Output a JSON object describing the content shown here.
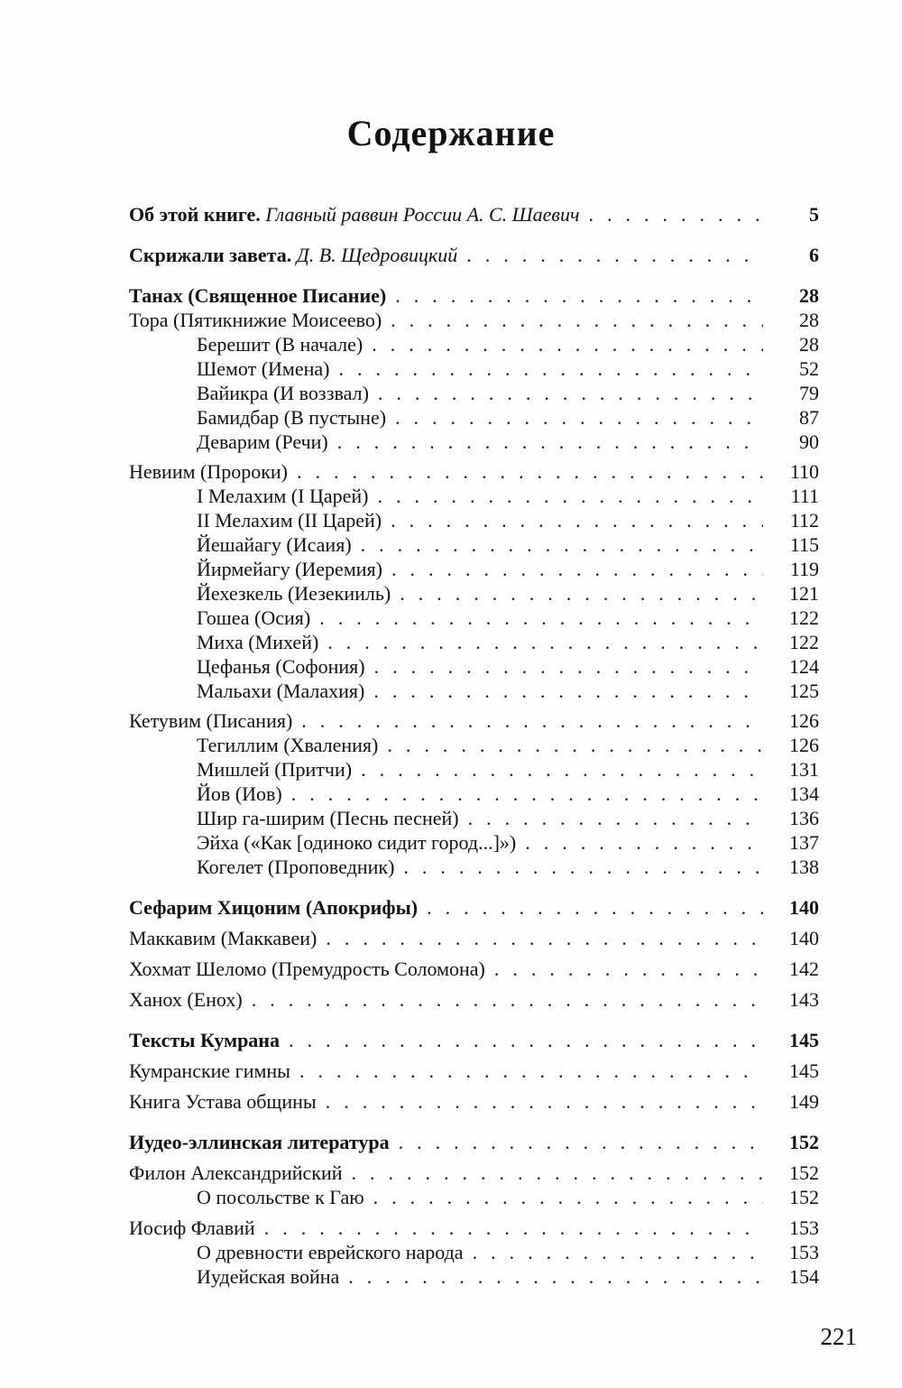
{
  "toc": {
    "title": "Содержание",
    "sections": [
      {
        "rows": [
          {
            "parts": [
              {
                "text": "Об этой книге.",
                "style": "bold"
              },
              {
                "text": "Главный раввин России А. С. Шаевич",
                "style": "italic"
              }
            ],
            "page": "5",
            "pageBold": true,
            "indent": 0
          }
        ]
      },
      {
        "rows": [
          {
            "parts": [
              {
                "text": "Скрижали завета.",
                "style": "bold"
              },
              {
                "text": "Д. В. Щедровицкий",
                "style": "italic"
              }
            ],
            "page": "6",
            "pageBold": true,
            "indent": 0
          }
        ]
      },
      {
        "rows": [
          {
            "label": "Танах (Священное Писание)",
            "bold": true,
            "page": "28",
            "indent": 0
          },
          {
            "label": "Тора (Пятикнижие Моисеево)",
            "page": "28",
            "indent": 0
          },
          {
            "label": "Берешит (В начале)",
            "page": "28",
            "indent": 1
          },
          {
            "label": "Шемот (Имена)",
            "page": "52",
            "indent": 1
          },
          {
            "label": "Вайикра (И воззвал)",
            "page": "79",
            "indent": 1
          },
          {
            "label": "Бамидбар (В пустыне)",
            "page": "87",
            "indent": 1
          },
          {
            "label": "Деварим (Речи)",
            "page": "90",
            "indent": 1
          },
          {
            "label": "Невиим (Пророки)",
            "page": "110",
            "indent": 0
          },
          {
            "label": "I Мелахим (I Царей)",
            "page": "111",
            "indent": 1
          },
          {
            "label": "II Мелахим (II Царей)",
            "page": "112",
            "indent": 1
          },
          {
            "label": "Йешайагу (Исаия)",
            "page": "115",
            "indent": 1
          },
          {
            "label": "Йирмейагу (Иеремия)",
            "page": "119",
            "indent": 1
          },
          {
            "label": "Йехезкель (Иезекииль)",
            "page": "121",
            "indent": 1
          },
          {
            "label": "Гошеа (Осия)",
            "page": "122",
            "indent": 1
          },
          {
            "label": "Миха (Михей)",
            "page": "122",
            "indent": 1
          },
          {
            "label": "Цефанья (Софония)",
            "page": "124",
            "indent": 1
          },
          {
            "label": "Мальахи (Малахия)",
            "page": "125",
            "indent": 1
          },
          {
            "label": "Кетувим (Писания)",
            "page": "126",
            "indent": 0
          },
          {
            "label": "Тегиллим (Хваления)",
            "page": "126",
            "indent": 1
          },
          {
            "label": "Мишлей (Притчи)",
            "page": "131",
            "indent": 1
          },
          {
            "label": "Йов (Иов)",
            "page": "134",
            "indent": 1
          },
          {
            "label": "Шир га-ширим (Песнь песней)",
            "page": "136",
            "indent": 1
          },
          {
            "label": "Эйха («Как [одиноко сидит город...]»)",
            "page": "137",
            "indent": 1
          },
          {
            "label": "Когелет (Проповедник)",
            "page": "138",
            "indent": 1
          }
        ]
      },
      {
        "rows": [
          {
            "label": "Сефарим Хицоним (Апокрифы)",
            "bold": true,
            "page": "140",
            "indent": 0
          },
          {
            "label": "Маккавим (Маккавеи)",
            "page": "140",
            "indent": 0
          },
          {
            "label": "Хохмат Шеломо (Премудрость Соломона)",
            "page": "142",
            "indent": 0
          },
          {
            "label": "Ханох (Енох)",
            "page": "143",
            "indent": 0
          }
        ]
      },
      {
        "rows": [
          {
            "label": "Тексты Кумрана",
            "bold": true,
            "page": "145",
            "indent": 0
          },
          {
            "label": "Кумранские гимны",
            "page": "145",
            "indent": 0
          },
          {
            "label": "Книга Устава общины",
            "page": "149",
            "indent": 0
          }
        ]
      },
      {
        "rows": [
          {
            "label": "Иудео-эллинская литература",
            "bold": true,
            "page": "152",
            "indent": 0
          },
          {
            "label": "Филон Александрийский",
            "page": "152",
            "indent": 0
          },
          {
            "label": "О посольстве к Гаю",
            "page": "152",
            "indent": 1
          },
          {
            "label": "Иосиф Флавий",
            "page": "153",
            "indent": 0
          },
          {
            "label": "О древности еврейского народа",
            "page": "153",
            "indent": 1
          },
          {
            "label": "Иудейская война",
            "page": "154",
            "indent": 1
          }
        ]
      }
    ]
  },
  "footer": {
    "page_number": "221"
  },
  "leader_dots": "......................................................................."
}
